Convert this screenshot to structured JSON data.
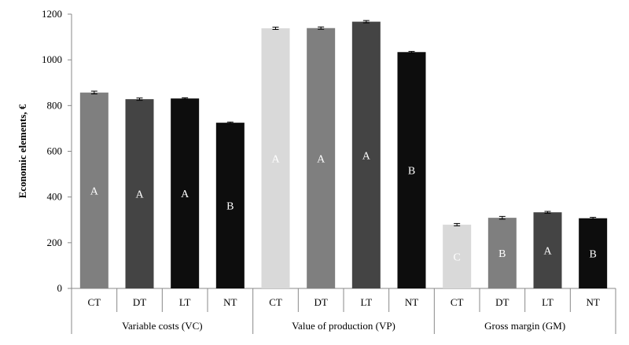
{
  "chart_data": {
    "type": "bar",
    "ylabel": "Economic  elements, €",
    "ylim": [
      0,
      1200
    ],
    "yticks": [
      0,
      200,
      400,
      600,
      800,
      1000,
      1200
    ],
    "grid": false,
    "groups": [
      {
        "name": "Variable costs (VC)",
        "bars": [
          {
            "category": "CT",
            "value": 857,
            "error": 6,
            "letter": "A",
            "color": "#7f7f7f",
            "letter_color": "#ffffff"
          },
          {
            "category": "DT",
            "value": 828,
            "error": 5,
            "letter": "A",
            "color": "#444444",
            "letter_color": "#ffffff"
          },
          {
            "category": "LT",
            "value": 831,
            "error": 3,
            "letter": "A",
            "color": "#0d0d0d",
            "letter_color": "#ffffff"
          },
          {
            "category": "NT",
            "value": 725,
            "error": 3,
            "letter": "B",
            "color": "#0d0d0d",
            "letter_color": "#ffffff"
          }
        ]
      },
      {
        "name": "Value of production (VP)",
        "bars": [
          {
            "category": "CT",
            "value": 1138,
            "error": 5,
            "letter": "A",
            "color": "#d9d9d9",
            "letter_color": "#ffffff"
          },
          {
            "category": "DT",
            "value": 1139,
            "error": 5,
            "letter": "A",
            "color": "#7f7f7f",
            "letter_color": "#ffffff"
          },
          {
            "category": "LT",
            "value": 1167,
            "error": 5,
            "letter": "A",
            "color": "#444444",
            "letter_color": "#ffffff"
          },
          {
            "category": "NT",
            "value": 1034,
            "error": 3,
            "letter": "B",
            "color": "#0d0d0d",
            "letter_color": "#ffffff"
          }
        ]
      },
      {
        "name": "Gross margin (GM)",
        "bars": [
          {
            "category": "CT",
            "value": 279,
            "error": 5,
            "letter": "C",
            "color": "#d9d9d9",
            "letter_color": "#ffffff"
          },
          {
            "category": "DT",
            "value": 309,
            "error": 6,
            "letter": "B",
            "color": "#7f7f7f",
            "letter_color": "#ffffff"
          },
          {
            "category": "LT",
            "value": 333,
            "error": 4,
            "letter": "A",
            "color": "#444444",
            "letter_color": "#ffffff"
          },
          {
            "category": "NT",
            "value": 307,
            "error": 4,
            "letter": "B",
            "color": "#0d0d0d",
            "letter_color": "#ffffff"
          }
        ]
      }
    ]
  }
}
